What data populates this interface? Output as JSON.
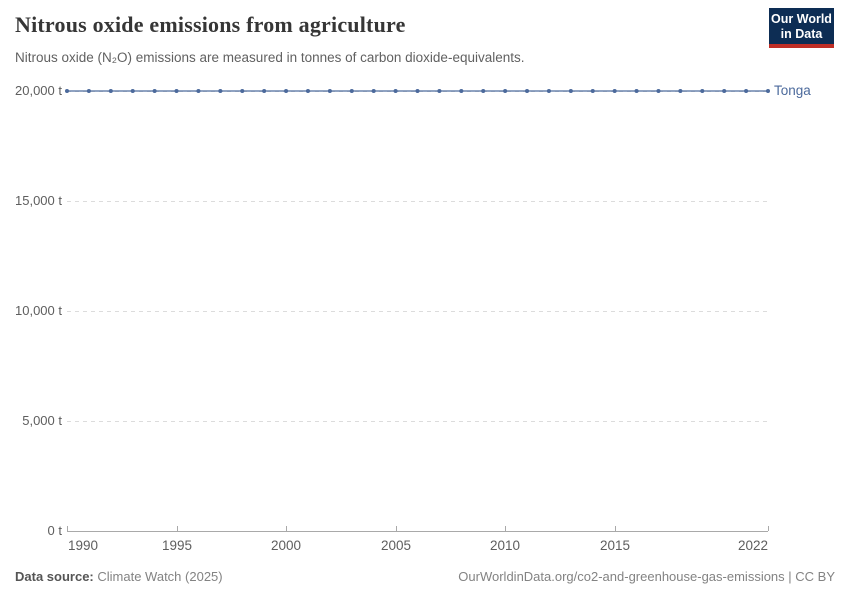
{
  "header": {
    "title": "Nitrous oxide emissions from agriculture",
    "subtitle": "Nitrous oxide (N₂O) emissions are measured in tonnes of carbon dioxide-equivalents.",
    "logo": {
      "line1": "Our World",
      "line2": "in Data",
      "bg_color": "#0d2d54",
      "stripe_color": "#bf2e26"
    }
  },
  "chart_data": {
    "type": "line",
    "title": "Nitrous oxide emissions from agriculture",
    "unit": "tonnes of carbon dioxide-equivalents",
    "xlim": [
      1990,
      2022
    ],
    "ylim": [
      0,
      20000
    ],
    "grid": "horizontal-dashed",
    "legend_position": "end-of-line",
    "x_ticks": [
      {
        "value": 1990,
        "label": "1990"
      },
      {
        "value": 1995,
        "label": "1995"
      },
      {
        "value": 2000,
        "label": "2000"
      },
      {
        "value": 2005,
        "label": "2005"
      },
      {
        "value": 2010,
        "label": "2010"
      },
      {
        "value": 2015,
        "label": "2015"
      },
      {
        "value": 2022,
        "label": "2022"
      }
    ],
    "y_ticks": [
      {
        "value": 0,
        "label": "0 t"
      },
      {
        "value": 5000,
        "label": "5,000 t"
      },
      {
        "value": 10000,
        "label": "10,000 t"
      },
      {
        "value": 15000,
        "label": "15,000 t"
      },
      {
        "value": 20000,
        "label": "20,000 t"
      }
    ],
    "series": [
      {
        "name": "Tonga",
        "color": "#4c6a9c",
        "x": [
          1990,
          1991,
          1992,
          1993,
          1994,
          1995,
          1996,
          1997,
          1998,
          1999,
          2000,
          2001,
          2002,
          2003,
          2004,
          2005,
          2006,
          2007,
          2008,
          2009,
          2010,
          2011,
          2012,
          2013,
          2014,
          2015,
          2016,
          2017,
          2018,
          2019,
          2020,
          2021,
          2022
        ],
        "values": [
          20000,
          20000,
          20000,
          20000,
          20000,
          20000,
          20000,
          20000,
          20000,
          20000,
          20000,
          20000,
          20000,
          20000,
          20000,
          20000,
          20000,
          20000,
          20000,
          20000,
          20000,
          20000,
          20000,
          20000,
          20000,
          20000,
          20000,
          20000,
          20000,
          20000,
          20000,
          20000,
          20000
        ]
      }
    ]
  },
  "footer": {
    "source_label": "Data source:",
    "source_value": "Climate Watch (2025)",
    "credit": "OurWorldinData.org/co2-and-greenhouse-gas-emissions | CC BY"
  }
}
